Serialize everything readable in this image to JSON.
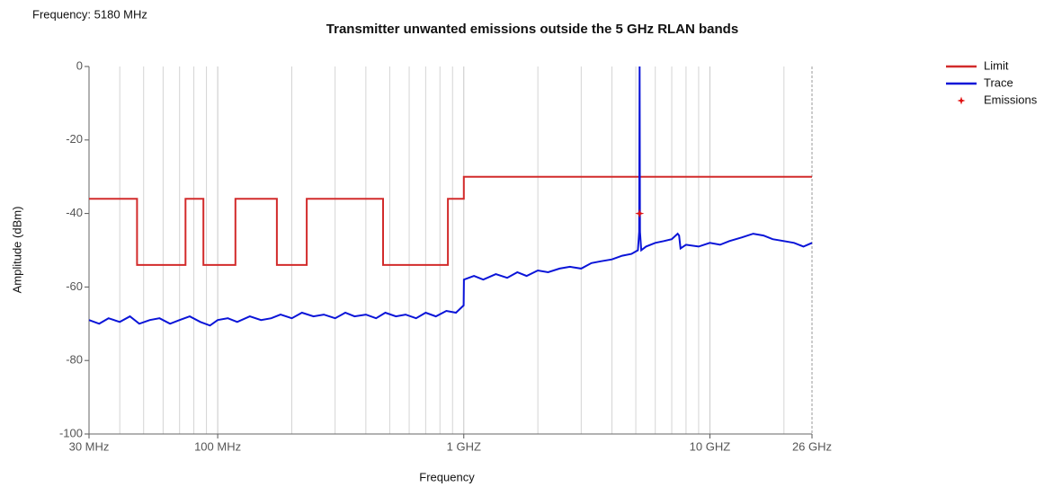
{
  "header": "Frequency: 5180 MHz",
  "chart_data": {
    "type": "line",
    "title": "Transmitter unwanted emissions outside the 5 GHz RLAN bands",
    "x_label": "Frequency",
    "y_label": "Amplitude (dBm)",
    "x_scale": "log",
    "xlim": [
      30,
      26000
    ],
    "xticks": [
      {
        "value": 30,
        "label": "30 MHz"
      },
      {
        "value": 100,
        "label": "100 MHz"
      },
      {
        "value": 1000,
        "label": "1 GHZ"
      },
      {
        "value": 10000,
        "label": "10 GHZ"
      },
      {
        "value": 26000,
        "label": "26 GHz"
      }
    ],
    "x_minor_grid": [
      40,
      50,
      60,
      70,
      80,
      90,
      200,
      300,
      400,
      500,
      600,
      700,
      800,
      900,
      2000,
      3000,
      4000,
      5000,
      6000,
      7000,
      8000,
      9000,
      20000
    ],
    "ylim": [
      -100,
      0
    ],
    "yticks": [
      0,
      -20,
      -40,
      -60,
      -80,
      -100
    ],
    "grid": true,
    "legend": "upper right",
    "series": [
      {
        "name": "Limit",
        "color": "#d22b2b",
        "style": "line",
        "x": [
          30,
          47,
          47,
          74,
          74,
          87.5,
          87.5,
          118,
          118,
          174,
          174,
          230,
          230,
          470,
          470,
          862,
          862,
          1000,
          1000,
          26000
        ],
        "values": [
          -36,
          -36,
          -54,
          -54,
          -36,
          -36,
          -54,
          -54,
          -36,
          -36,
          -54,
          -54,
          -36,
          -36,
          -54,
          -54,
          -36,
          -36,
          -30,
          -30
        ]
      },
      {
        "name": "Trace",
        "color": "#0a14d8",
        "style": "line",
        "x": [
          30,
          33,
          36,
          40,
          44,
          48,
          53,
          58,
          64,
          70,
          77,
          85,
          93,
          100,
          110,
          120,
          135,
          150,
          165,
          180,
          200,
          220,
          245,
          270,
          300,
          330,
          360,
          400,
          440,
          480,
          530,
          580,
          640,
          700,
          770,
          850,
          930,
          999,
          1001,
          1100,
          1200,
          1350,
          1500,
          1650,
          1800,
          2000,
          2200,
          2450,
          2700,
          3000,
          3300,
          3600,
          4000,
          4400,
          4800,
          5100,
          5160,
          5180,
          5200,
          5260,
          5500,
          6000,
          6500,
          7000,
          7400,
          7500,
          7600,
          8000,
          9000,
          10000,
          11000,
          12000,
          13500,
          15000,
          16500,
          18000,
          20000,
          22000,
          24000,
          26000
        ],
        "values": [
          -69,
          -70,
          -68.5,
          -69.5,
          -68,
          -70,
          -69,
          -68.5,
          -70,
          -69,
          -68,
          -69.5,
          -70.5,
          -69,
          -68.5,
          -69.5,
          -68,
          -69,
          -68.5,
          -67.5,
          -68.5,
          -67,
          -68,
          -67.5,
          -68.5,
          -67,
          -68,
          -67.5,
          -68.5,
          -67,
          -68,
          -67.5,
          -68.5,
          -67,
          -68,
          -66.5,
          -67,
          -65,
          -58,
          -57,
          -58,
          -56.5,
          -57.5,
          -56,
          -57,
          -55.5,
          -56,
          -55,
          -54.5,
          -55,
          -53.5,
          -53,
          -52.5,
          -51.5,
          -51,
          -50,
          -45,
          0,
          -45,
          -50,
          -49,
          -48,
          -47.5,
          -47,
          -45.5,
          -46,
          -49.5,
          -48.5,
          -49,
          -48,
          -48.5,
          -47.5,
          -46.5,
          -45.5,
          -46,
          -47,
          -47.5,
          -48,
          -49,
          -48
        ]
      },
      {
        "name": "Emissions",
        "color": "#e01010",
        "style": "scatter",
        "x": [
          5180
        ],
        "values": [
          -40
        ]
      }
    ]
  }
}
